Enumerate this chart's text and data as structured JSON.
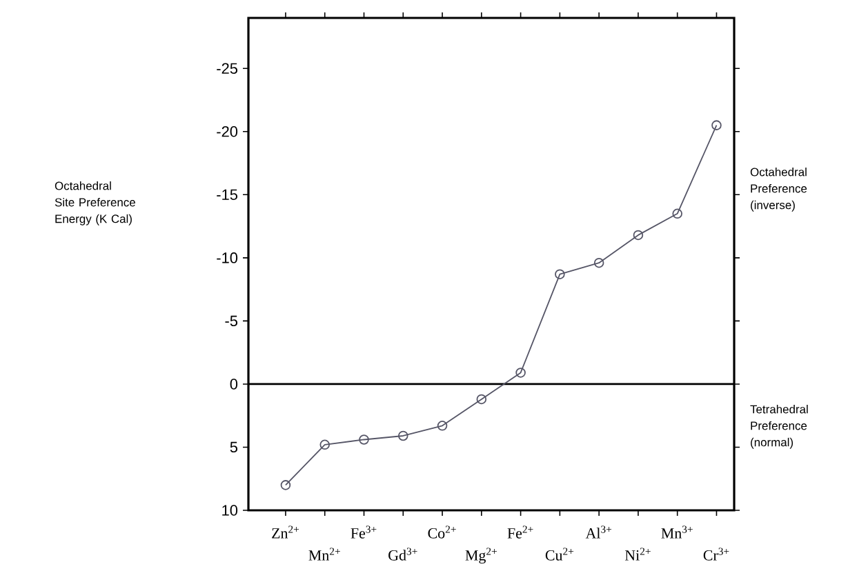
{
  "chart_data": {
    "type": "line",
    "categories": [
      "Zn$^{2+}$",
      "Mn$^{2+}$",
      "Fe$^{3+}$",
      "Gd$^{3+}$",
      "Co$^{2+}$",
      "Mg$^{2+}$",
      "Fe$^{2+}$",
      "Cu$^{2+}$",
      "Al$^{3+}$",
      "Ni$^{2+}$",
      "Mn$^{3+}$",
      "Cr$^{3+}$"
    ],
    "series": [
      {
        "color": "#555566",
        "values": [
          8,
          4.8,
          4.4,
          4.1,
          3.3,
          1.2,
          -0.9,
          -8.7,
          -9.6,
          -11.8,
          -13.5,
          -20.5
        ]
      }
    ],
    "ylim": [
      10,
      -29
    ],
    "yticks": [
      -25,
      -20,
      -15,
      -10,
      -5,
      0,
      5,
      10
    ],
    "ref_lines": [
      {
        "axis": "y",
        "value": 0,
        "color": "#000000"
      }
    ],
    "annotations": [
      "Octahedral Site Preference Energy (K Cal)",
      "Octahedral Preference (inverse)",
      "Tetrahedral Preference (normal)"
    ],
    "marker": "circle",
    "line_style": "solid"
  }
}
